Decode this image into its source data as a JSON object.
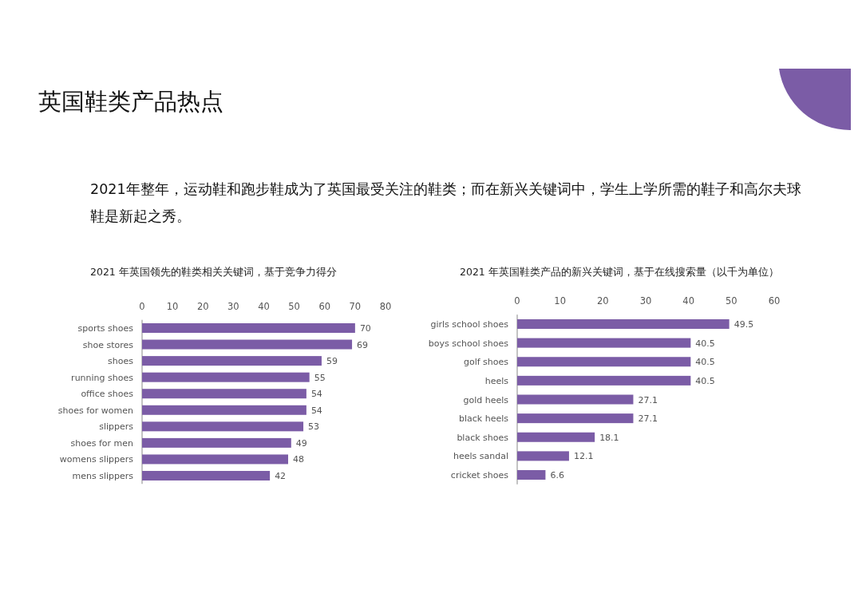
{
  "chart_data": [
    {
      "type": "other",
      "title": "英国鞋类产品热点",
      "subtitle": "2021年整年，运动鞋和跑步鞋成为了英国最受关注的鞋类；而在新兴关键词中，学生上学所需的鞋子和高尔夫球鞋是新起之秀。"
    },
    {
      "type": "bar",
      "orientation": "horizontal",
      "title": "2021 年英国领先的鞋类相关关键词，基于竞争力得分",
      "categories": [
        "sports shoes",
        "shoe stores",
        "shoes",
        "running shoes",
        "office shoes",
        "shoes for women",
        "slippers",
        "shoes for men",
        "womens slippers",
        "mens slippers"
      ],
      "values": [
        70,
        69,
        59,
        55,
        54,
        54,
        53,
        49,
        48,
        42
      ],
      "color": "#7b5ca6",
      "xlim": [
        0,
        80
      ],
      "xticks": [
        0,
        10,
        20,
        30,
        40,
        50,
        60,
        70,
        80
      ],
      "data_labels": true
    },
    {
      "type": "bar",
      "orientation": "horizontal",
      "title": "2021 年英国鞋类产品的新兴关键词，基于在线搜索量（以千为单位）",
      "categories": [
        "girls school shoes",
        "boys school shoes",
        "golf shoes",
        "heels",
        "gold heels",
        "black heels",
        "black shoes",
        "heels sandal",
        "cricket shoes"
      ],
      "values": [
        49.5,
        40.5,
        40.5,
        40.5,
        27.1,
        27.1,
        18.1,
        12.1,
        6.6
      ],
      "color": "#7b5ca6",
      "xlim": [
        0,
        60
      ],
      "xticks": [
        0,
        10,
        20,
        30,
        40,
        50,
        60
      ],
      "data_labels": true
    }
  ]
}
